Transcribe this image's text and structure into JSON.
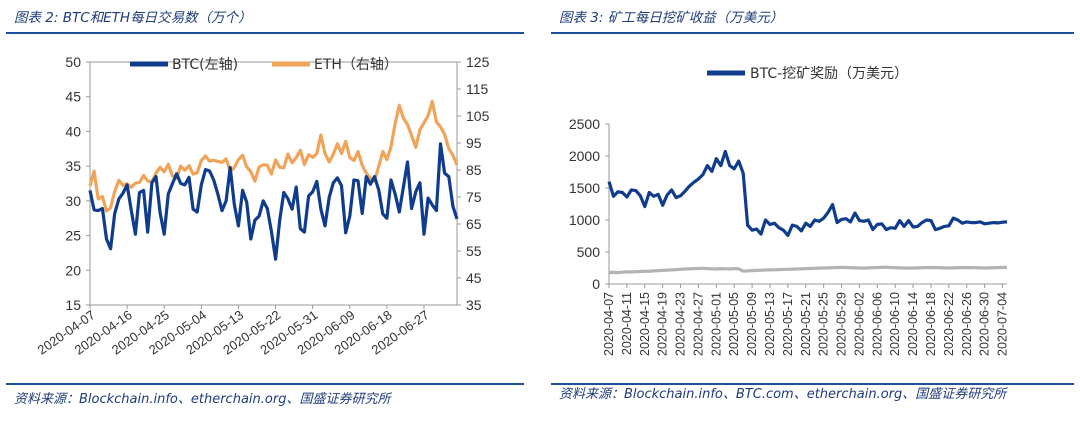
{
  "colors": {
    "btc": "#0f3c8c",
    "eth": "#f0a459",
    "gray": "#b3b3b3",
    "rule": "#1f4e9c",
    "title": "#1f3c7a"
  },
  "left": {
    "title": "图表 2: BTC和ETH每日交易数（万个）",
    "source": "资料来源：Blockchain.info、etherchain.org、国盛证券研究所"
  },
  "right": {
    "title": "图表 3: 矿工每日挖矿收益（万美元）",
    "source": "资料来源：Blockchain.info、BTC.com、etherchain.org、国盛证券研究所"
  },
  "chart_data": [
    {
      "type": "line",
      "legend_placement": "top",
      "grid": false,
      "x_start": "2020-04-07",
      "x_end": "2020-07-04",
      "x_ticks": [
        "2020-04-07",
        "2020-04-16",
        "2020-04-25",
        "2020-05-04",
        "2020-05-13",
        "2020-05-22",
        "2020-05-31",
        "2020-06-09",
        "2020-06-18",
        "2020-06-27"
      ],
      "y_left": {
        "ylim": [
          15,
          50
        ],
        "ticks": [
          15,
          20,
          25,
          30,
          35,
          40,
          45,
          50
        ]
      },
      "y_right": {
        "ylim": [
          35,
          125
        ],
        "ticks": [
          35,
          45,
          55,
          65,
          75,
          85,
          95,
          105,
          115,
          125
        ]
      },
      "series": [
        {
          "name": "BTC(左轴)",
          "axis": "left",
          "values": [
            31.5,
            28.7,
            28.6,
            28.9,
            24.5,
            23.1,
            28.2,
            30.3,
            31.1,
            32.3,
            28.7,
            25.2,
            31.2,
            31.5,
            25.5,
            32.6,
            33.5,
            28.3,
            25.2,
            31.0,
            32.5,
            33.9,
            32.5,
            32.3,
            33.4,
            28.8,
            28.4,
            32.3,
            34.5,
            34.3,
            33.0,
            31.0,
            28.6,
            30.0,
            34.8,
            29.5,
            26.4,
            31.5,
            29.8,
            24.5,
            27.2,
            27.8,
            30.0,
            28.9,
            25.6,
            21.6,
            27.2,
            31.2,
            30.3,
            28.8,
            32.0,
            26.0,
            25.5,
            30.7,
            31.3,
            32.8,
            28.8,
            26.4,
            30.5,
            32.6,
            33.3,
            32.2,
            25.4,
            27.8,
            33.0,
            32.9,
            28.2,
            33.5,
            32.4,
            33.5,
            31.6,
            28.1,
            27.5,
            33.0,
            31.0,
            28.4,
            32.0,
            35.6,
            28.9,
            31.3,
            32.6,
            25.2,
            30.4,
            29.4,
            28.6,
            38.2,
            34.0,
            33.5,
            29.2,
            27.4
          ]
        },
        {
          "name": "ETH（右轴）",
          "axis": "right",
          "values": [
            79.1,
            84.6,
            74.3,
            75.2,
            69.8,
            71.0,
            77.1,
            81.2,
            79.3,
            79.9,
            78.6,
            80.1,
            80.4,
            83.0,
            80.9,
            80.6,
            83.9,
            86.0,
            84.3,
            87.1,
            82.8,
            82.0,
            86.4,
            84.9,
            86.6,
            83.5,
            84.0,
            88.5,
            90.2,
            88.3,
            88.6,
            88.2,
            87.8,
            89.1,
            84.6,
            85.9,
            88.8,
            90.5,
            86.2,
            84.4,
            80.9,
            86.1,
            86.9,
            86.8,
            83.5,
            88.7,
            86.0,
            85.8,
            90.9,
            87.7,
            89.6,
            92.3,
            87.0,
            90.7,
            89.7,
            91.1,
            98.0,
            91.1,
            88.0,
            90.8,
            94.7,
            91.1,
            95.6,
            89.6,
            88.5,
            91.8,
            86.7,
            83.8,
            82.0,
            80.8,
            86.3,
            91.8,
            88.9,
            93.6,
            102.1,
            109.0,
            104.2,
            101.9,
            97.7,
            93.4,
            99.9,
            102.5,
            105.1,
            110.4,
            102.8,
            101.0,
            98.2,
            92.9,
            90.5,
            86.9
          ]
        }
      ]
    },
    {
      "type": "line",
      "legend_placement": "top",
      "grid": false,
      "x_start": "2020-04-07",
      "x_end": "2020-07-04",
      "x_ticks": [
        "2020-04-07",
        "2020-04-11",
        "2020-04-15",
        "2020-04-19",
        "2020-04-23",
        "2020-04-27",
        "2020-05-01",
        "2020-05-05",
        "2020-05-09",
        "2020-05-13",
        "2020-05-17",
        "2020-05-21",
        "2020-05-25",
        "2020-05-29",
        "2020-06-02",
        "2020-06-06",
        "2020-06-10",
        "2020-06-14",
        "2020-06-18",
        "2020-06-22",
        "2020-06-26",
        "2020-06-30",
        "2020-07-04"
      ],
      "ylim": [
        0,
        2500
      ],
      "y_ticks": [
        0,
        500,
        1000,
        1500,
        2000,
        2500
      ],
      "series": [
        {
          "name": "BTC-挖矿奖励（万美元）",
          "values": [
            1600,
            1370,
            1440,
            1430,
            1360,
            1470,
            1460,
            1380,
            1210,
            1430,
            1370,
            1400,
            1230,
            1390,
            1470,
            1350,
            1380,
            1450,
            1530,
            1590,
            1640,
            1710,
            1850,
            1760,
            1960,
            1850,
            2070,
            1850,
            1800,
            1920,
            1730,
            920,
            840,
            860,
            780,
            1000,
            930,
            950,
            880,
            840,
            760,
            920,
            900,
            830,
            950,
            900,
            1000,
            980,
            1030,
            1120,
            1240,
            960,
            1010,
            1020,
            970,
            1110,
            990,
            980,
            1000,
            850,
            930,
            940,
            850,
            880,
            870,
            990,
            900,
            990,
            890,
            900,
            960,
            1000,
            990,
            850,
            870,
            900,
            910,
            1030,
            1000,
            950,
            970,
            960,
            960,
            970,
            940,
            950,
            960,
            955,
            965,
            970
          ]
        },
        {
          "name": "",
          "values": [
            180,
            182,
            178,
            185,
            190,
            188,
            192,
            195,
            200,
            198,
            205,
            210,
            212,
            215,
            220,
            225,
            230,
            235,
            238,
            240,
            242,
            245,
            240,
            238,
            235,
            240,
            238,
            236,
            240,
            238,
            200,
            205,
            210,
            212,
            215,
            218,
            220,
            222,
            225,
            228,
            230,
            232,
            235,
            238,
            240,
            242,
            245,
            248,
            250,
            252,
            255,
            258,
            260,
            258,
            255,
            252,
            250,
            248,
            252,
            255,
            258,
            260,
            262,
            258,
            255,
            252,
            250,
            248,
            250,
            252,
            254,
            256,
            258,
            256,
            254,
            252,
            250,
            252,
            254,
            256,
            258,
            256,
            254,
            252,
            250,
            252,
            254,
            256,
            258,
            260
          ]
        }
      ]
    }
  ]
}
